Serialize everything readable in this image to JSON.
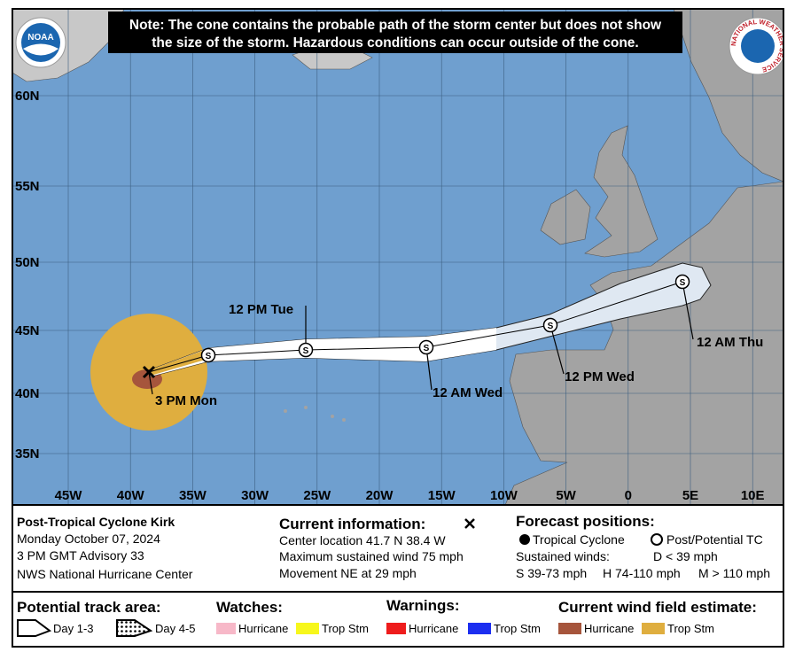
{
  "logos": {
    "noaa": "NOAA",
    "nws": "NATIONAL WEATHER SERVICE"
  },
  "note": {
    "lines": [
      "Note: The cone contains the probable path of the storm center but does not show",
      "the size of the storm. Hazardous conditions can occur outside of the cone."
    ]
  },
  "map": {
    "lat_labels": [
      "60N",
      "55N",
      "50N",
      "45N",
      "40N",
      "35N"
    ],
    "lon_labels": [
      "45W",
      "40W",
      "35W",
      "30W",
      "25W",
      "20W",
      "15W",
      "10W",
      "5W",
      "0",
      "5E",
      "10E"
    ],
    "current_position_label": "3 PM Mon",
    "forecast_symbol": "S",
    "forecast_labels": [
      "12 PM Tue",
      "12 AM Wed",
      "12 PM Wed",
      "12 AM Thu"
    ]
  },
  "storm": {
    "name": "Post-Tropical Cyclone Kirk",
    "date": "Monday October 07, 2024",
    "advisory": "3 PM GMT Advisory 33",
    "agency": "NWS National Hurricane Center"
  },
  "current_information": {
    "title": "Current information:",
    "lines": [
      "Center location 41.7 N 38.4 W",
      "Maximum sustained wind 75 mph",
      "Movement NE at 29 mph"
    ]
  },
  "forecast_positions": {
    "title": "Forecast positions:",
    "tropical": "Tropical Cyclone",
    "post": "Post/Potential TC",
    "sustained": "Sustained winds:",
    "d": "D < 39 mph",
    "s": "S 39-73 mph",
    "h": "H 74-110 mph",
    "m": "M > 110 mph"
  },
  "legend": {
    "track_title": "Potential track area:",
    "day13": "Day 1-3",
    "day45": "Day 4-5",
    "watches_title": "Watches:",
    "watch_hurricane": "Hurricane",
    "watch_trop": "Trop Stm",
    "warnings_title": "Warnings:",
    "warn_hurricane": "Hurricane",
    "warn_trop": "Trop Stm",
    "wind_title": "Current wind field estimate:",
    "wind_hurricane": "Hurricane",
    "wind_trop": "Trop Stm"
  }
}
